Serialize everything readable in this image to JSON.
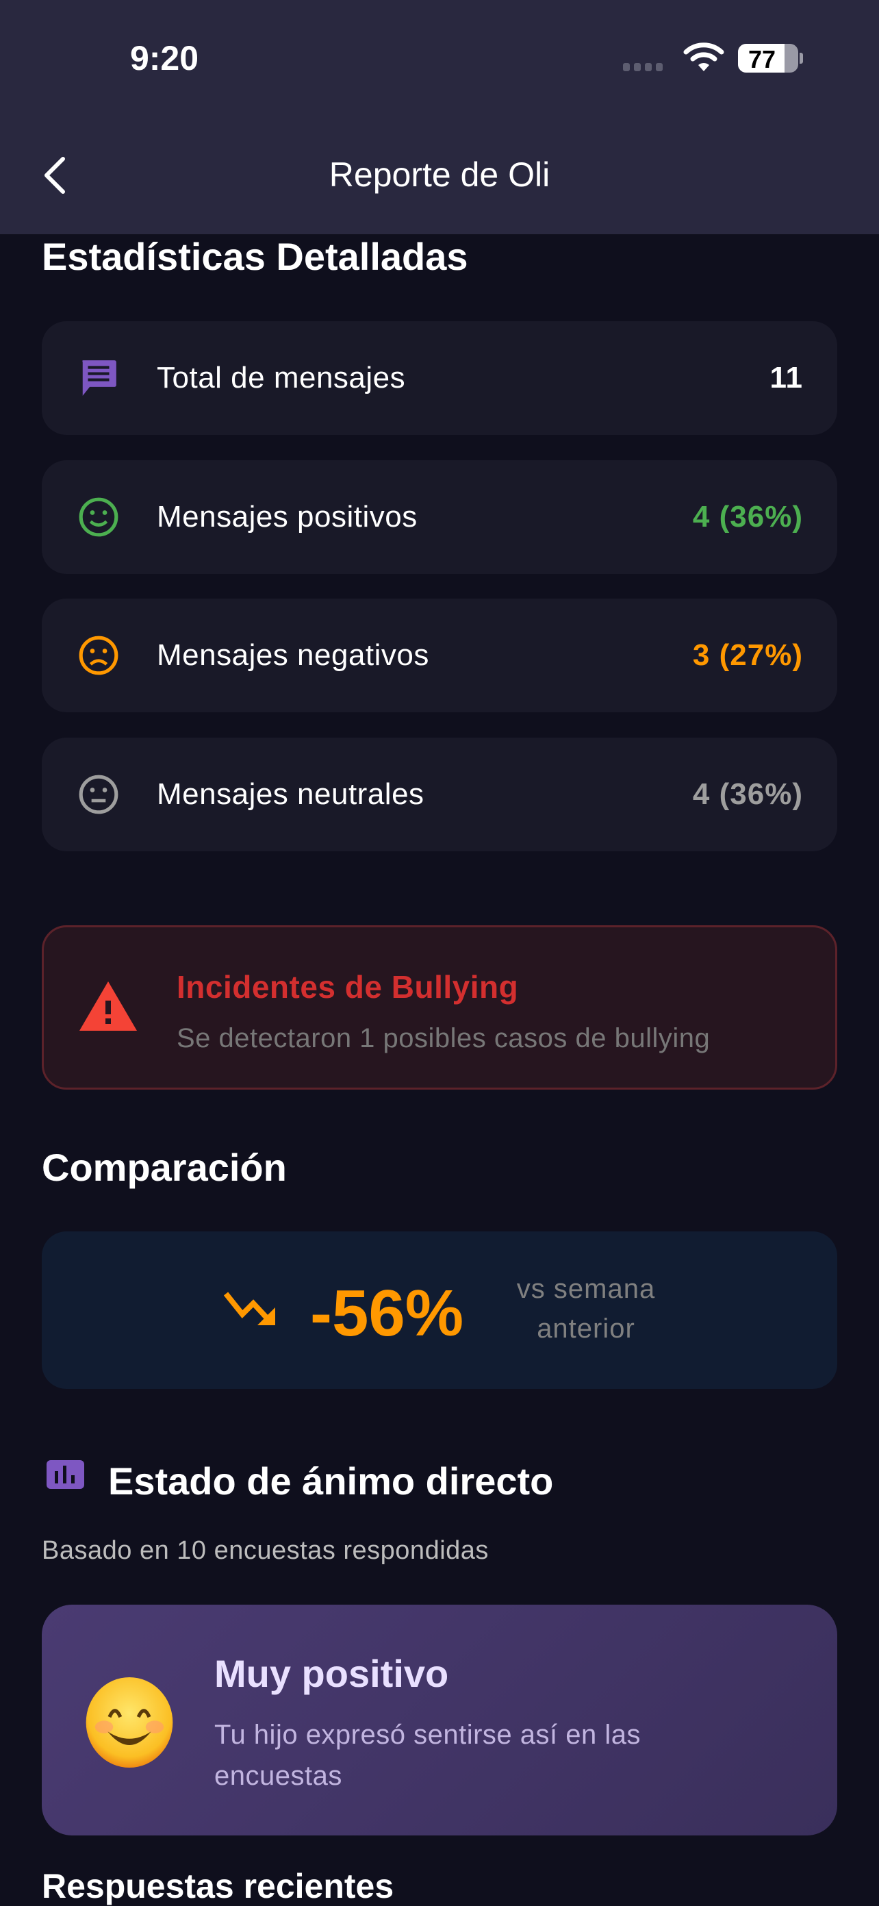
{
  "status_bar": {
    "time": "9:20",
    "battery": "77",
    "battery_level": 77
  },
  "nav": {
    "title": "Reporte de Oli"
  },
  "stats": {
    "heading": "Estadísticas Detalladas",
    "items": [
      {
        "label": "Total de mensajes",
        "value": "11",
        "icon": "message-icon",
        "color": "#ffffff"
      },
      {
        "label": "Mensajes positivos",
        "value": "4 (36%)",
        "icon": "smile-icon",
        "color": "#4caf50"
      },
      {
        "label": "Mensajes negativos",
        "value": "3 (27%)",
        "icon": "sad-icon",
        "color": "#ff9800"
      },
      {
        "label": "Mensajes neutrales",
        "value": "4 (36%)",
        "icon": "neutral-icon",
        "color": "#9e9e9e"
      }
    ]
  },
  "bullying": {
    "title": "Incidentes de Bullying",
    "description": "Se detectaron 1 posibles casos de bullying",
    "color": "#d32f2f"
  },
  "comparison": {
    "heading": "Comparación",
    "value": "-56%",
    "label": "vs semana anterior",
    "trend": "trending-down",
    "color": "#ff9800"
  },
  "mood": {
    "heading": "Estado de ánimo directo",
    "subtitle": "Basado en 10 encuestas respondidas",
    "title": "Muy positivo",
    "description": "Tu hijo expresó sentirse así en las encuestas",
    "emoji": "😊"
  },
  "recent": {
    "heading": "Respuestas recientes"
  }
}
